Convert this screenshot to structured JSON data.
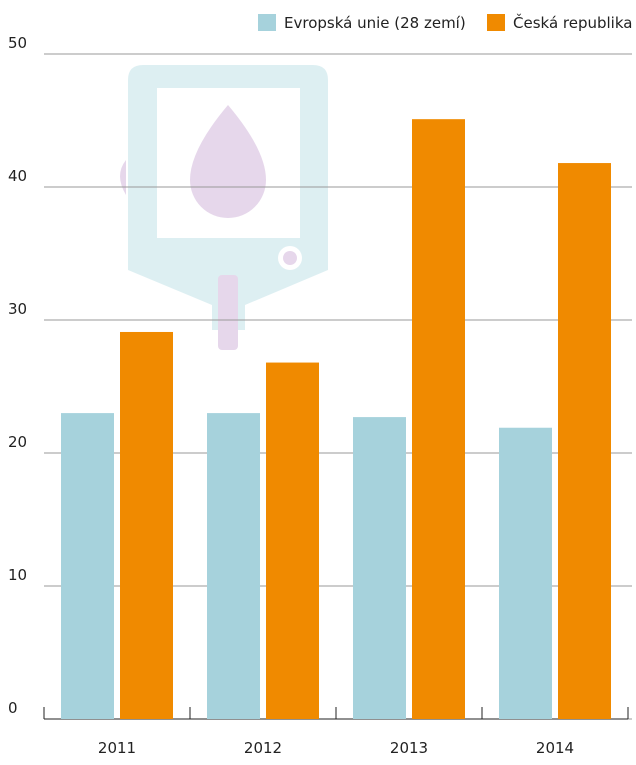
{
  "chart_data": {
    "type": "bar",
    "categories": [
      "2011",
      "2012",
      "2013",
      "2014"
    ],
    "series": [
      {
        "name": "Evropská unie (28 zemí)",
        "color": "#a6d2dc",
        "values": [
          23,
          23,
          22.7,
          21.9
        ]
      },
      {
        "name": "Česká republika",
        "color": "#f08a00",
        "values": [
          29.1,
          26.8,
          45.1,
          41.8
        ]
      }
    ],
    "ylim": [
      0,
      50
    ],
    "yticks": [
      0,
      10,
      20,
      30,
      40,
      50
    ],
    "grid": true,
    "legend": "top-right"
  }
}
